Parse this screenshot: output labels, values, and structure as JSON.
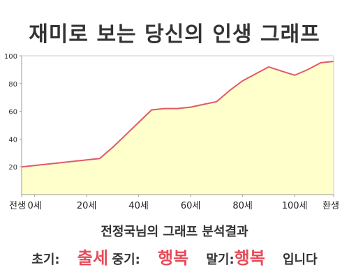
{
  "title": "재미로 보는 당신의 인생 그래프",
  "chart_data": {
    "type": "area",
    "x": [
      -5,
      0,
      5,
      10,
      15,
      20,
      25,
      30,
      35,
      40,
      45,
      50,
      55,
      60,
      65,
      70,
      75,
      80,
      85,
      90,
      95,
      100,
      105,
      110,
      115
    ],
    "values": [
      20,
      21,
      22,
      23,
      24,
      25,
      26,
      34,
      43,
      52,
      61,
      62,
      62,
      63,
      65,
      67,
      75,
      82,
      87,
      92,
      89,
      86,
      90,
      95,
      96
    ],
    "x_tick_labels": [
      {
        "x": -5,
        "label": "전생"
      },
      {
        "x": 0,
        "label": "0세"
      },
      {
        "x": 20,
        "label": "20세"
      },
      {
        "x": 40,
        "label": "40세"
      },
      {
        "x": 60,
        "label": "60세"
      },
      {
        "x": 80,
        "label": "80세"
      },
      {
        "x": 100,
        "label": "100세"
      },
      {
        "x": 115,
        "label": "환생"
      }
    ],
    "y_ticks": [
      20,
      40,
      60,
      80,
      100
    ],
    "ylim": [
      0,
      100
    ],
    "grid": false,
    "fill_color": "#ffffcc",
    "line_color": "#e05a66",
    "xlabel": "",
    "ylabel": ""
  },
  "footer": {
    "subtitle": "전정국님의 그래프 분석결과",
    "early_label": "초기:",
    "early_value": "출세",
    "mid_label": "중기:",
    "mid_value": "행복",
    "late_label": "말기:",
    "late_value": "행복",
    "ending": "입니다"
  },
  "colors": {
    "accent": "#e84b5a",
    "text": "#333333"
  }
}
